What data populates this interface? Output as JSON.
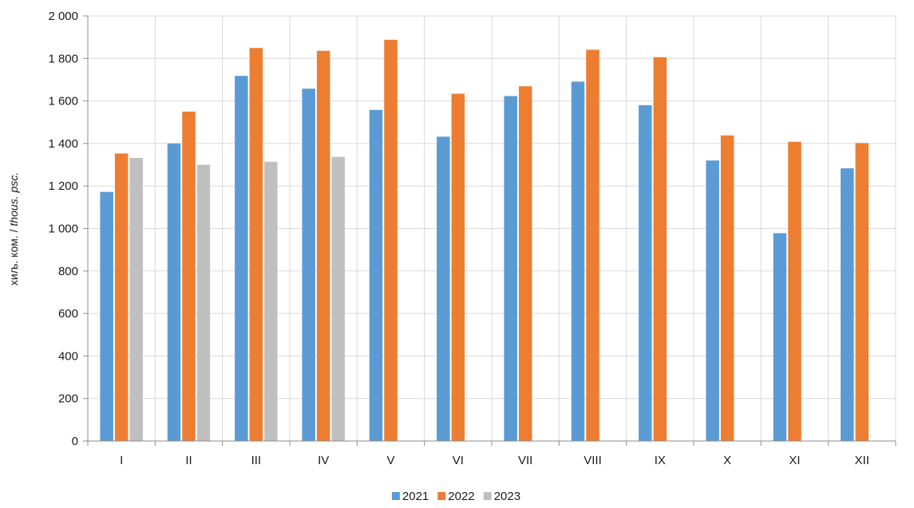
{
  "chart_data": {
    "type": "bar",
    "title": "",
    "xlabel": "",
    "ylabel_main": "хиљ. ком. / ",
    "ylabel_italic": "thous. psc.",
    "ylim": [
      0,
      2000
    ],
    "ytick_step": 200,
    "ytick_labels": [
      "0",
      "200",
      "400",
      "600",
      "800",
      "1 000",
      "1 200",
      "1 400",
      "1 600",
      "1 800",
      "2 000"
    ],
    "grid": true,
    "legend_position": "bottom",
    "categories": [
      "I",
      "II",
      "III",
      "IV",
      "V",
      "VI",
      "VII",
      "VIII",
      "IX",
      "X",
      "XI",
      "XII"
    ],
    "series": [
      {
        "name": "2021",
        "color": "#5b9bd5",
        "values": [
          1172,
          1400,
          1718,
          1658,
          1558,
          1432,
          1623,
          1691,
          1580,
          1320,
          978,
          1283
        ]
      },
      {
        "name": "2022",
        "color": "#ed7d31",
        "values": [
          1353,
          1550,
          1849,
          1836,
          1888,
          1634,
          1669,
          1841,
          1806,
          1438,
          1408,
          1402
        ]
      },
      {
        "name": "2023",
        "color": "#bfbfbf",
        "values": [
          1332,
          1300,
          1314,
          1337,
          null,
          null,
          null,
          null,
          null,
          null,
          null,
          null
        ]
      }
    ]
  }
}
